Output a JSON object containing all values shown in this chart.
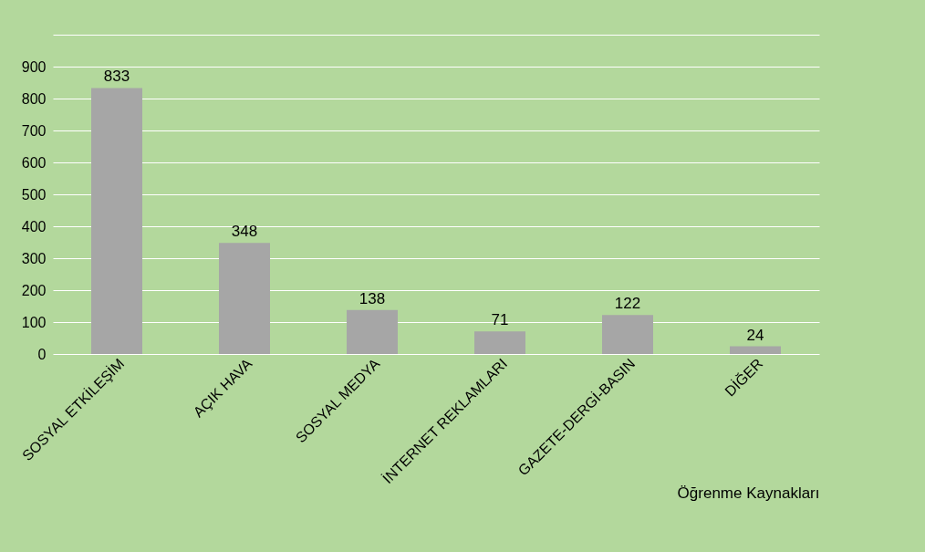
{
  "chart_data": {
    "type": "bar",
    "xlabel": "Öğrenme Kaynakları",
    "categories": [
      "SOSYAL ETKİLEŞİM",
      "AÇIK HAVA",
      "SOSYAL MEDYA",
      "İNTERNET REKLAMLARI",
      "GAZETE-DERGİ-BASIN",
      "DİĞER"
    ],
    "values": [
      833,
      348,
      138,
      71,
      122,
      24
    ],
    "color": "#a6a6a6",
    "ylim": [
      0,
      1000
    ],
    "yticks": [
      0,
      100,
      200,
      300,
      400,
      500,
      600,
      700,
      800,
      900,
      {
        "value": 1000,
        "label": null
      }
    ],
    "grid": "y",
    "data_labels": true
  }
}
